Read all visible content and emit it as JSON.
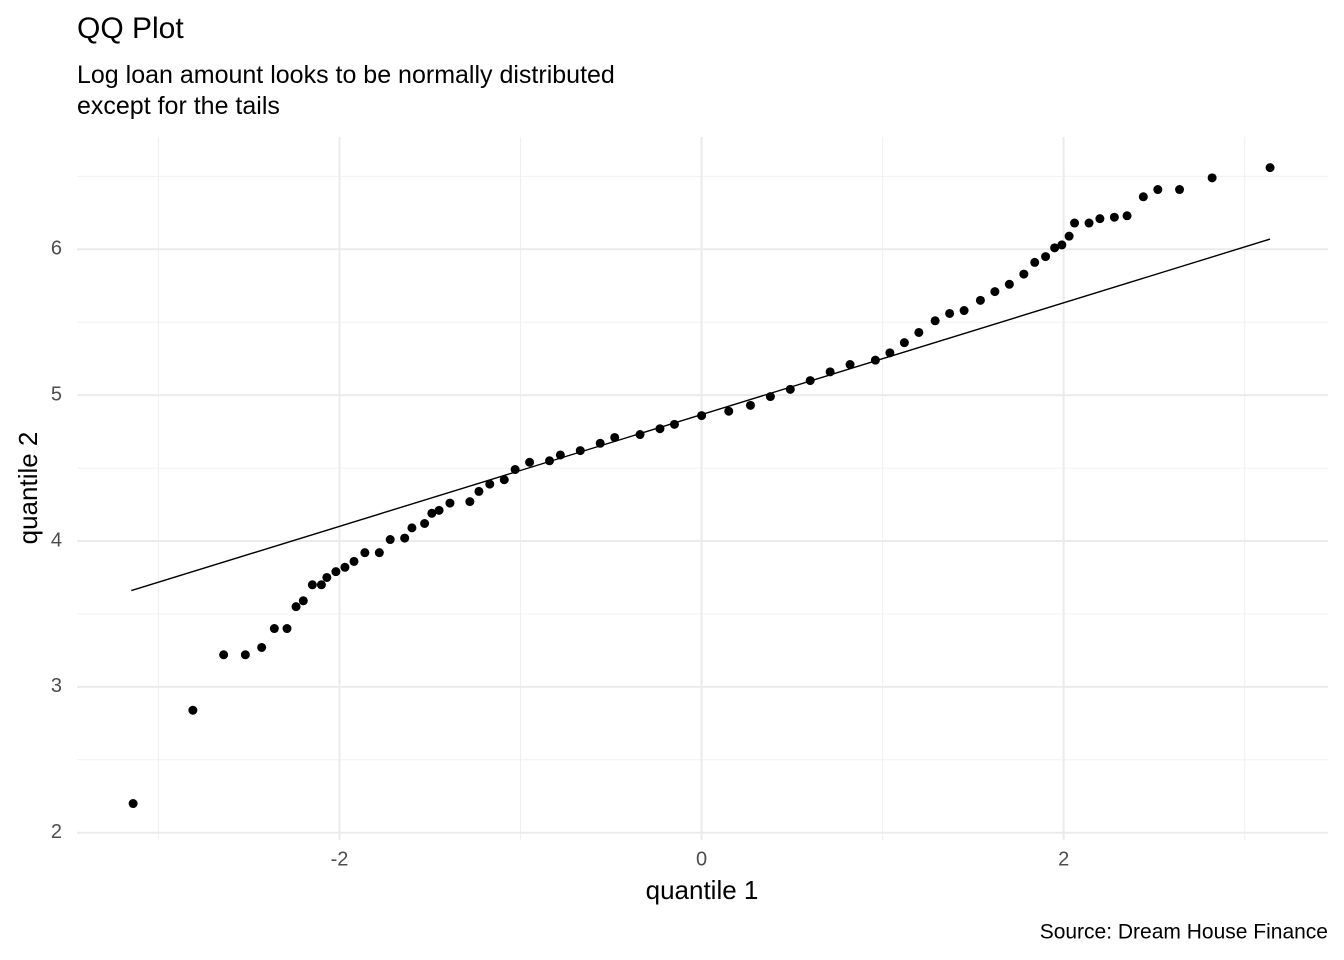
{
  "chart_data": {
    "type": "scatter",
    "title": "QQ Plot",
    "subtitle": "Log loan amount looks to be normally distributed\nexcept for the tails",
    "x_label": "quantile 1",
    "y_label": "quantile 2",
    "caption": "Source: Dream House Finance",
    "color": "#000000",
    "grid": true,
    "xlim": [
      -3.45,
      3.46
    ],
    "ylim": [
      1.95,
      6.77
    ],
    "xticks": [
      -2,
      0,
      2
    ],
    "yticks": [
      2,
      3,
      4,
      5,
      6
    ],
    "minor_xticks": [
      -3,
      -1,
      1,
      3
    ],
    "minor_yticks": [
      2.5,
      3.5,
      4.5,
      5.5,
      6.5
    ],
    "x": [
      -3.14,
      -2.81,
      -2.64,
      -2.52,
      -2.43,
      -2.36,
      -2.29,
      -2.24,
      -2.2,
      -2.15,
      -2.1,
      -2.07,
      -2.02,
      -1.97,
      -1.92,
      -1.86,
      -1.78,
      -1.72,
      -1.64,
      -1.6,
      -1.53,
      -1.49,
      -1.45,
      -1.39,
      -1.28,
      -1.23,
      -1.17,
      -1.09,
      -1.03,
      -0.95,
      -0.84,
      -0.78,
      -0.67,
      -0.56,
      -0.48,
      -0.34,
      -0.23,
      -0.15,
      0.0,
      0.15,
      0.27,
      0.38,
      0.49,
      0.6,
      0.71,
      0.82,
      0.96,
      1.04,
      1.12,
      1.2,
      1.29,
      1.37,
      1.45,
      1.54,
      1.62,
      1.7,
      1.78,
      1.84,
      1.9,
      1.95,
      1.99,
      2.03,
      2.06,
      2.14,
      2.2,
      2.28,
      2.35,
      2.44,
      2.52,
      2.64,
      2.82,
      3.14
    ],
    "values": [
      2.2,
      2.84,
      3.22,
      3.22,
      3.27,
      3.4,
      3.4,
      3.55,
      3.59,
      3.7,
      3.7,
      3.75,
      3.79,
      3.82,
      3.86,
      3.92,
      3.92,
      4.01,
      4.02,
      4.09,
      4.12,
      4.19,
      4.21,
      4.26,
      4.27,
      4.34,
      4.39,
      4.42,
      4.49,
      4.54,
      4.55,
      4.59,
      4.62,
      4.67,
      4.71,
      4.73,
      4.77,
      4.8,
      4.86,
      4.89,
      4.93,
      4.99,
      5.04,
      5.1,
      5.16,
      5.21,
      5.24,
      5.29,
      5.36,
      5.43,
      5.51,
      5.56,
      5.58,
      5.65,
      5.71,
      5.76,
      5.83,
      5.91,
      5.95,
      6.01,
      6.03,
      6.09,
      6.18,
      6.18,
      6.21,
      6.22,
      6.23,
      6.36,
      6.41,
      6.41,
      6.49,
      6.56
    ],
    "reference_line": {
      "x": [
        -3.15,
        3.14
      ],
      "values": [
        3.66,
        6.07
      ],
      "color": "#000000"
    }
  }
}
